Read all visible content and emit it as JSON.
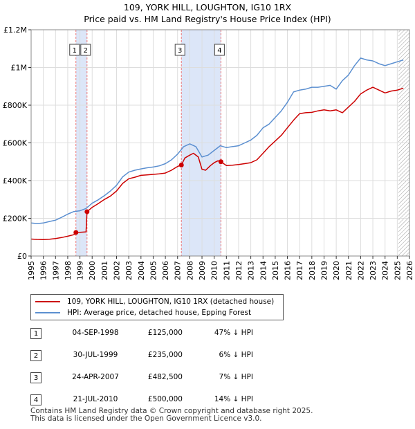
{
  "title": "109, YORK HILL, LOUGHTON, IG10 1RX",
  "subtitle": "Price paid vs. HM Land Registry's House Price Index (HPI)",
  "colors": {
    "property": "#cc0000",
    "hpi": "#5b8fd0",
    "shade": "#dce6f8",
    "vline": "#ee7777",
    "hatch": "#999999"
  },
  "chart_data": {
    "type": "line",
    "title": "109, YORK HILL, LOUGHTON, IG10 1RX",
    "subtitle": "Price paid vs. HM Land Registry's House Price Index (HPI)",
    "xlim": [
      1995,
      2026
    ],
    "ylim": [
      0,
      1200000
    ],
    "yticks": [
      0,
      200000,
      400000,
      600000,
      800000,
      1000000,
      1200000
    ],
    "ytick_labels": [
      "£0",
      "£200K",
      "£400K",
      "£600K",
      "£800K",
      "£1M",
      "£1.2M"
    ],
    "xticks": [
      1995,
      1996,
      1997,
      1998,
      1999,
      2000,
      2001,
      2002,
      2003,
      2004,
      2005,
      2006,
      2007,
      2008,
      2009,
      2010,
      2011,
      2012,
      2013,
      2014,
      2015,
      2016,
      2017,
      2018,
      2019,
      2020,
      2021,
      2022,
      2023,
      2024,
      2025,
      2026
    ],
    "xtick_labels": [
      "1995",
      "1996",
      "1997",
      "1998",
      "1999",
      "2000",
      "2001",
      "2002",
      "2003",
      "2004",
      "2005",
      "2006",
      "2007",
      "2008",
      "2009",
      "2010",
      "2011",
      "2012",
      "2013",
      "2014",
      "2015",
      "2016",
      "2017",
      "2018",
      "2019",
      "2020",
      "2021",
      "2022",
      "2023",
      "2024",
      "2025",
      "2026"
    ],
    "grid": true,
    "shaded_periods": [
      [
        1998.67,
        1999.58
      ],
      [
        2007.31,
        2010.55
      ]
    ],
    "future_hatch_from": 2025.1,
    "series": [
      {
        "name": "109, YORK HILL, LOUGHTON, IG10 1RX (detached house)",
        "color": "#cc0000",
        "x": [
          1995.0,
          1995.5,
          1996.0,
          1996.5,
          1997.0,
          1997.5,
          1998.0,
          1998.5,
          1998.67,
          1999.0,
          1999.5,
          1999.58,
          2000.0,
          2000.5,
          2001.0,
          2001.5,
          2002.0,
          2002.5,
          2003.0,
          2003.5,
          2004.0,
          2004.5,
          2005.0,
          2005.5,
          2006.0,
          2006.5,
          2007.0,
          2007.31,
          2007.6,
          2008.0,
          2008.3,
          2008.7,
          2009.0,
          2009.3,
          2009.7,
          2010.0,
          2010.3,
          2010.55,
          2011.0,
          2011.5,
          2012.0,
          2012.5,
          2013.0,
          2013.5,
          2014.0,
          2014.5,
          2015.0,
          2015.5,
          2016.0,
          2016.5,
          2017.0,
          2017.5,
          2018.0,
          2018.5,
          2019.0,
          2019.5,
          2020.0,
          2020.5,
          2021.0,
          2021.5,
          2022.0,
          2022.5,
          2023.0,
          2023.5,
          2024.0,
          2024.5,
          2025.0,
          2025.5
        ],
        "values": [
          90000,
          88000,
          87000,
          89000,
          93000,
          98000,
          105000,
          113000,
          125000,
          126000,
          128000,
          235000,
          258000,
          278000,
          300000,
          318000,
          345000,
          385000,
          410000,
          418000,
          428000,
          430000,
          433000,
          436000,
          440000,
          455000,
          475000,
          482500,
          520000,
          535000,
          545000,
          525000,
          460000,
          455000,
          480000,
          495000,
          505000,
          500000,
          480000,
          482000,
          485000,
          490000,
          495000,
          510000,
          545000,
          580000,
          610000,
          640000,
          680000,
          720000,
          755000,
          760000,
          762000,
          770000,
          775000,
          770000,
          775000,
          760000,
          790000,
          820000,
          860000,
          880000,
          895000,
          880000,
          865000,
          875000,
          880000,
          890000
        ]
      },
      {
        "name": "HPI: Average price, detached house, Epping Forest",
        "color": "#5b8fd0",
        "x": [
          1995.0,
          1995.5,
          1996.0,
          1996.5,
          1997.0,
          1997.5,
          1998.0,
          1998.5,
          1999.0,
          1999.5,
          2000.0,
          2000.5,
          2001.0,
          2001.5,
          2002.0,
          2002.5,
          2003.0,
          2003.5,
          2004.0,
          2004.5,
          2005.0,
          2005.5,
          2006.0,
          2006.5,
          2007.0,
          2007.5,
          2008.0,
          2008.5,
          2009.0,
          2009.5,
          2010.0,
          2010.5,
          2011.0,
          2011.5,
          2012.0,
          2012.5,
          2013.0,
          2013.5,
          2014.0,
          2014.5,
          2015.0,
          2015.5,
          2016.0,
          2016.5,
          2017.0,
          2017.5,
          2018.0,
          2018.5,
          2019.0,
          2019.5,
          2020.0,
          2020.5,
          2021.0,
          2021.5,
          2022.0,
          2022.5,
          2023.0,
          2023.5,
          2024.0,
          2024.5,
          2025.0,
          2025.5
        ],
        "values": [
          175000,
          172000,
          175000,
          183000,
          190000,
          205000,
          222000,
          236000,
          240000,
          252000,
          280000,
          298000,
          320000,
          345000,
          375000,
          420000,
          445000,
          455000,
          462000,
          468000,
          472000,
          478000,
          490000,
          510000,
          540000,
          580000,
          595000,
          580000,
          525000,
          535000,
          560000,
          585000,
          575000,
          580000,
          585000,
          600000,
          615000,
          640000,
          680000,
          700000,
          735000,
          770000,
          815000,
          870000,
          880000,
          885000,
          895000,
          895000,
          900000,
          905000,
          885000,
          930000,
          960000,
          1010000,
          1050000,
          1040000,
          1035000,
          1020000,
          1010000,
          1020000,
          1030000,
          1040000
        ]
      }
    ],
    "sales": [
      {
        "n": "1",
        "x": 1998.67,
        "value": 125000
      },
      {
        "n": "2",
        "x": 1999.58,
        "value": 235000
      },
      {
        "n": "3",
        "x": 2007.31,
        "value": 482500
      },
      {
        "n": "4",
        "x": 2010.55,
        "value": 500000
      }
    ]
  },
  "legend": {
    "property": "109, YORK HILL, LOUGHTON, IG10 1RX (detached house)",
    "hpi": "HPI: Average price, detached house, Epping Forest"
  },
  "table": [
    {
      "n": "1",
      "date": "04-SEP-1998",
      "price": "£125,000",
      "hpi": "47% ↓ HPI"
    },
    {
      "n": "2",
      "date": "30-JUL-1999",
      "price": "£235,000",
      "hpi": "6% ↓ HPI"
    },
    {
      "n": "3",
      "date": "24-APR-2007",
      "price": "£482,500",
      "hpi": "7% ↓ HPI"
    },
    {
      "n": "4",
      "date": "21-JUL-2010",
      "price": "£500,000",
      "hpi": "14% ↓ HPI"
    }
  ],
  "footer": {
    "line1": "Contains HM Land Registry data © Crown copyright and database right 2025.",
    "line2": "This data is licensed under the Open Government Licence v3.0."
  }
}
